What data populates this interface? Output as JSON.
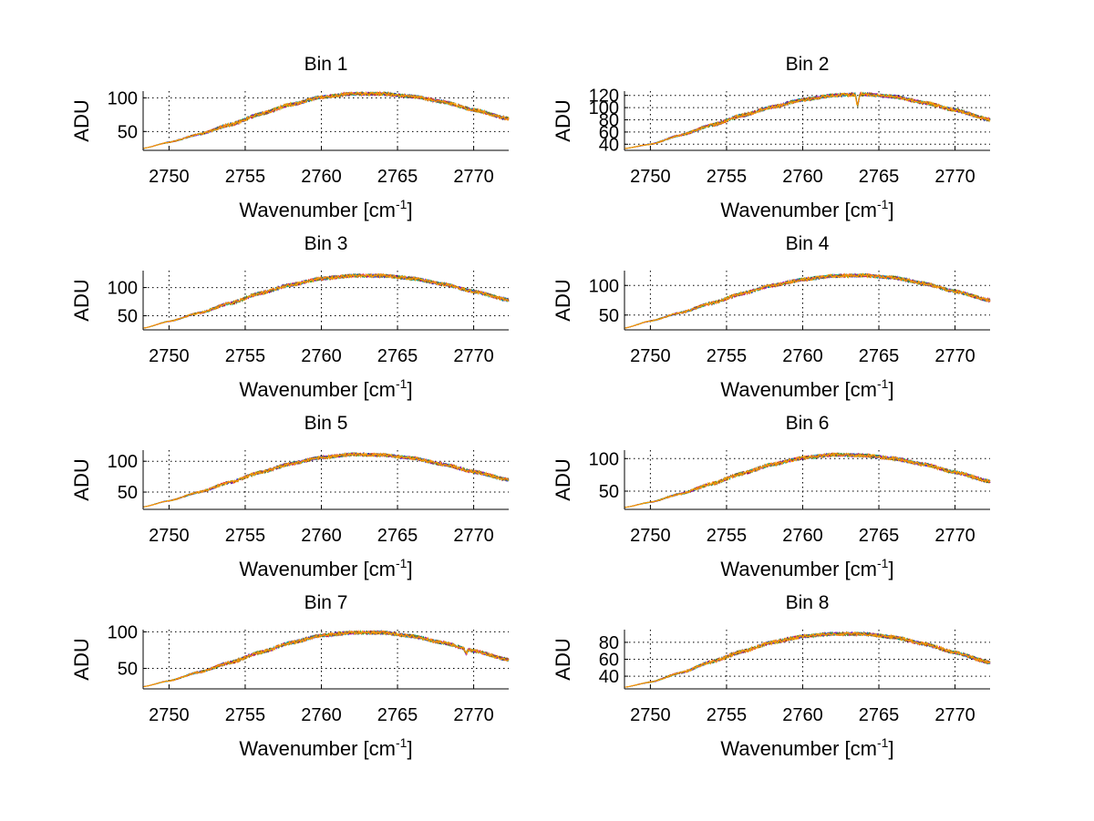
{
  "figure": {
    "background": "#ffffff",
    "series_colors": [
      "#ff9900",
      "#00aa00",
      "#0000ff",
      "#ff0000",
      "#00bbbb",
      "#aa00aa",
      "#888800",
      "#000000"
    ]
  },
  "chart_data": [
    {
      "type": "line",
      "title": "Bin 1",
      "ylabel": "ADU",
      "xlabel_base": "Wavenumber [cm",
      "xlabel_sup": "-1",
      "xlabel_end": "]",
      "xlim": [
        2748.3,
        2772.3
      ],
      "ylim": [
        22,
        110
      ],
      "xticks": [
        2750,
        2755,
        2760,
        2765,
        2770
      ],
      "yticks": [
        50,
        100
      ],
      "grid": true,
      "legend": false,
      "profile": {
        "x": [
          2748.3,
          2750,
          2752,
          2754,
          2756,
          2758,
          2760,
          2762,
          2764,
          2766,
          2768,
          2770,
          2772.3
        ],
        "y": [
          25,
          34,
          46,
          60,
          76,
          90,
          101,
          106,
          106,
          102,
          94,
          82,
          69
        ]
      },
      "noise": 2.5,
      "dips": []
    },
    {
      "type": "line",
      "title": "Bin 2",
      "ylabel": "ADU",
      "xlabel_base": "Wavenumber [cm",
      "xlabel_sup": "-1",
      "xlabel_end": "]",
      "xlim": [
        2748.3,
        2772.3
      ],
      "ylim": [
        30,
        127
      ],
      "xticks": [
        2750,
        2755,
        2760,
        2765,
        2770
      ],
      "yticks": [
        40,
        60,
        80,
        100,
        120
      ],
      "grid": true,
      "legend": false,
      "profile": {
        "x": [
          2748.3,
          2750,
          2752,
          2754,
          2756,
          2758,
          2760,
          2762,
          2764,
          2766,
          2768,
          2770,
          2772.3
        ],
        "y": [
          33,
          40,
          55,
          71,
          87,
          101,
          113,
          120,
          122,
          118,
          108,
          96,
          80
        ]
      },
      "noise": 2.8,
      "dips": [
        [
          2763.6,
          20
        ]
      ]
    },
    {
      "type": "line",
      "title": "Bin 3",
      "ylabel": "ADU",
      "xlabel_base": "Wavenumber [cm",
      "xlabel_sup": "-1",
      "xlabel_end": "]",
      "xlim": [
        2748.3,
        2772.3
      ],
      "ylim": [
        25,
        130
      ],
      "xticks": [
        2750,
        2755,
        2760,
        2765,
        2770
      ],
      "yticks": [
        50,
        100
      ],
      "grid": true,
      "legend": false,
      "profile": {
        "x": [
          2748.3,
          2750,
          2752,
          2754,
          2756,
          2758,
          2760,
          2762,
          2764,
          2766,
          2768,
          2770,
          2772.3
        ],
        "y": [
          28,
          40,
          55,
          72,
          90,
          105,
          116,
          121,
          121,
          116,
          106,
          93,
          78
        ]
      },
      "noise": 3.0,
      "dips": []
    },
    {
      "type": "line",
      "title": "Bin 4",
      "ylabel": "ADU",
      "xlabel_base": "Wavenumber [cm",
      "xlabel_sup": "-1",
      "xlabel_end": "]",
      "xlim": [
        2748.3,
        2772.3
      ],
      "ylim": [
        25,
        125
      ],
      "xticks": [
        2750,
        2755,
        2760,
        2765,
        2770
      ],
      "yticks": [
        50,
        100
      ],
      "grid": true,
      "legend": false,
      "profile": {
        "x": [
          2748.3,
          2750,
          2752,
          2754,
          2756,
          2758,
          2760,
          2762,
          2764,
          2766,
          2768,
          2770,
          2772.3
        ],
        "y": [
          28,
          40,
          54,
          70,
          86,
          100,
          110,
          116,
          117,
          113,
          103,
          90,
          75
        ]
      },
      "noise": 2.8,
      "dips": []
    },
    {
      "type": "line",
      "title": "Bin 5",
      "ylabel": "ADU",
      "xlabel_base": "Wavenumber [cm",
      "xlabel_sup": "-1",
      "xlabel_end": "]",
      "xlim": [
        2748.3,
        2772.3
      ],
      "ylim": [
        22,
        118
      ],
      "xticks": [
        2750,
        2755,
        2760,
        2765,
        2770
      ],
      "yticks": [
        50,
        100
      ],
      "grid": true,
      "legend": false,
      "profile": {
        "x": [
          2748.3,
          2750,
          2752,
          2754,
          2756,
          2758,
          2760,
          2762,
          2764,
          2766,
          2768,
          2770,
          2772.3
        ],
        "y": [
          26,
          36,
          50,
          66,
          82,
          96,
          106,
          111,
          110,
          105,
          95,
          83,
          70
        ]
      },
      "noise": 2.6,
      "dips": []
    },
    {
      "type": "line",
      "title": "Bin 6",
      "ylabel": "ADU",
      "xlabel_base": "Wavenumber [cm",
      "xlabel_sup": "-1",
      "xlabel_end": "]",
      "xlim": [
        2748.3,
        2772.3
      ],
      "ylim": [
        22,
        113
      ],
      "xticks": [
        2750,
        2755,
        2760,
        2765,
        2770
      ],
      "yticks": [
        50,
        100
      ],
      "grid": true,
      "legend": false,
      "profile": {
        "x": [
          2748.3,
          2750,
          2752,
          2754,
          2756,
          2758,
          2760,
          2762,
          2764,
          2766,
          2768,
          2770,
          2772.3
        ],
        "y": [
          25,
          33,
          46,
          61,
          77,
          91,
          101,
          106,
          105,
          100,
          91,
          79,
          65
        ]
      },
      "noise": 2.6,
      "dips": []
    },
    {
      "type": "line",
      "title": "Bin 7",
      "ylabel": "ADU",
      "xlabel_base": "Wavenumber [cm",
      "xlabel_sup": "-1",
      "xlabel_end": "]",
      "xlim": [
        2748.3,
        2772.3
      ],
      "ylim": [
        22,
        103
      ],
      "xticks": [
        2750,
        2755,
        2760,
        2765,
        2770
      ],
      "yticks": [
        50,
        100
      ],
      "grid": true,
      "legend": false,
      "profile": {
        "x": [
          2748.3,
          2750,
          2752,
          2754,
          2756,
          2758,
          2760,
          2762,
          2764,
          2766,
          2768,
          2770,
          2772.3
        ],
        "y": [
          25,
          33,
          45,
          58,
          72,
          85,
          95,
          99,
          99,
          94,
          85,
          74,
          62
        ]
      },
      "noise": 2.3,
      "dips": [
        [
          2769.5,
          6
        ]
      ]
    },
    {
      "type": "line",
      "title": "Bin 8",
      "ylabel": "ADU",
      "xlabel_base": "Wavenumber [cm",
      "xlabel_sup": "-1",
      "xlabel_end": "]",
      "xlim": [
        2748.3,
        2772.3
      ],
      "ylim": [
        25,
        95
      ],
      "xticks": [
        2750,
        2755,
        2760,
        2765,
        2770
      ],
      "yticks": [
        40,
        60,
        80
      ],
      "grid": true,
      "legend": false,
      "profile": {
        "x": [
          2748.3,
          2750,
          2752,
          2754,
          2756,
          2758,
          2760,
          2762,
          2764,
          2766,
          2768,
          2770,
          2772.3
        ],
        "y": [
          27,
          33,
          44,
          57,
          69,
          80,
          87,
          90,
          90,
          86,
          78,
          68,
          56
        ]
      },
      "noise": 2.0,
      "dips": []
    }
  ]
}
